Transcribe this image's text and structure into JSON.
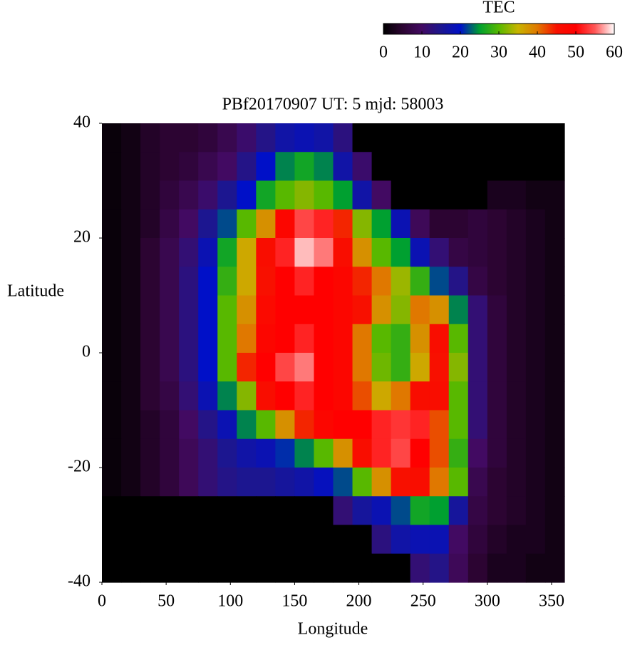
{
  "chart_data": {
    "type": "heatmap",
    "title": "PBf20170907  UT: 5  mjd: 58003",
    "xlabel": "Longitude",
    "ylabel": "Latitude",
    "colorbar_title": "TEC",
    "x": [
      7.5,
      22.5,
      37.5,
      52.5,
      67.5,
      82.5,
      97.5,
      112.5,
      127.5,
      142.5,
      157.5,
      172.5,
      187.5,
      202.5,
      217.5,
      232.5,
      247.5,
      262.5,
      277.5,
      292.5,
      307.5,
      322.5,
      337.5,
      352.5
    ],
    "y": [
      37.5,
      32.5,
      27.5,
      22.5,
      17.5,
      12.5,
      7.5,
      2.5,
      -2.5,
      -7.5,
      -12.5,
      -17.5,
      -22.5,
      -27.5,
      -32.5,
      -37.5
    ],
    "z": [
      [
        1,
        2,
        4,
        5,
        5,
        6,
        8,
        11,
        14,
        17,
        18,
        17,
        13,
        0,
        0,
        0,
        0,
        0,
        0,
        0,
        0,
        0,
        0,
        0
      ],
      [
        1,
        2,
        4,
        5,
        6,
        8,
        10,
        14,
        20,
        24,
        26,
        24,
        17,
        11,
        0,
        0,
        0,
        0,
        0,
        0,
        0,
        0,
        0,
        0
      ],
      [
        1,
        2,
        4,
        6,
        8,
        11,
        15,
        20,
        26,
        30,
        32,
        30,
        25,
        17,
        10,
        0,
        0,
        0,
        0,
        0,
        3,
        3,
        2,
        2
      ],
      [
        1,
        2,
        4,
        7,
        10,
        15,
        22,
        30,
        38,
        48,
        54,
        52,
        44,
        32,
        25,
        18,
        9,
        5,
        5,
        6,
        5,
        4,
        3,
        2
      ],
      [
        1,
        2,
        5,
        8,
        12,
        18,
        26,
        36,
        46,
        52,
        58,
        56,
        46,
        38,
        30,
        25,
        18,
        12,
        7,
        6,
        5,
        4,
        3,
        2
      ],
      [
        1,
        2,
        5,
        8,
        13,
        20,
        28,
        36,
        45,
        50,
        52,
        50,
        48,
        44,
        40,
        33,
        28,
        22,
        14,
        7,
        5,
        4,
        3,
        2
      ],
      [
        1,
        2,
        5,
        8,
        13,
        20,
        30,
        38,
        47,
        50,
        50,
        50,
        48,
        45,
        38,
        32,
        40,
        38,
        24,
        12,
        6,
        4,
        3,
        2
      ],
      [
        1,
        2,
        5,
        8,
        13,
        20,
        30,
        40,
        48,
        50,
        52,
        50,
        48,
        40,
        30,
        28,
        38,
        46,
        30,
        12,
        6,
        4,
        3,
        2
      ],
      [
        1,
        2,
        5,
        8,
        13,
        20,
        30,
        44,
        50,
        54,
        56,
        50,
        48,
        40,
        31,
        28,
        36,
        45,
        32,
        12,
        6,
        4,
        3,
        2
      ],
      [
        1,
        2,
        5,
        7,
        12,
        18,
        24,
        32,
        46,
        50,
        52,
        50,
        48,
        42,
        36,
        40,
        46,
        46,
        30,
        12,
        6,
        4,
        3,
        2
      ],
      [
        1,
        2,
        4,
        6,
        10,
        14,
        18,
        24,
        30,
        38,
        44,
        48,
        50,
        50,
        52,
        53,
        52,
        42,
        30,
        12,
        6,
        4,
        3,
        2
      ],
      [
        1,
        2,
        4,
        6,
        9,
        12,
        15,
        17,
        18,
        21,
        24,
        30,
        38,
        46,
        52,
        54,
        50,
        42,
        28,
        10,
        6,
        4,
        3,
        2
      ],
      [
        1,
        2,
        4,
        6,
        9,
        12,
        14,
        15,
        15,
        16,
        17,
        19,
        22,
        30,
        38,
        45,
        46,
        40,
        30,
        8,
        5,
        4,
        3,
        2
      ],
      [
        0,
        0,
        0,
        0,
        0,
        0,
        0,
        0,
        0,
        0,
        0,
        0,
        12,
        16,
        18,
        22,
        26,
        25,
        16,
        7,
        5,
        4,
        3,
        2
      ],
      [
        0,
        0,
        0,
        0,
        0,
        0,
        0,
        0,
        0,
        0,
        0,
        0,
        0,
        0,
        13,
        17,
        18,
        18,
        10,
        6,
        4,
        3,
        3,
        2
      ],
      [
        0,
        0,
        0,
        0,
        0,
        0,
        0,
        0,
        0,
        0,
        0,
        0,
        0,
        0,
        0,
        0,
        12,
        14,
        9,
        5,
        3,
        3,
        2,
        2
      ]
    ],
    "xlim": [
      0,
      360
    ],
    "ylim": [
      -40,
      40
    ],
    "xticks": [
      0,
      50,
      100,
      150,
      200,
      250,
      300,
      350
    ],
    "yticks": [
      -40,
      -20,
      0,
      20,
      40
    ],
    "zlim": [
      0,
      60
    ],
    "zticks": [
      0,
      10,
      20,
      30,
      40,
      50,
      60
    ],
    "colorscale": [
      "#000000",
      "#2c0432",
      "#420a62",
      "#1c1690",
      "#0010c8",
      "#00a030",
      "#58b800",
      "#c8b400",
      "#e07800",
      "#f81000",
      "#ff0000",
      "#ff5858",
      "#ffffff"
    ]
  }
}
